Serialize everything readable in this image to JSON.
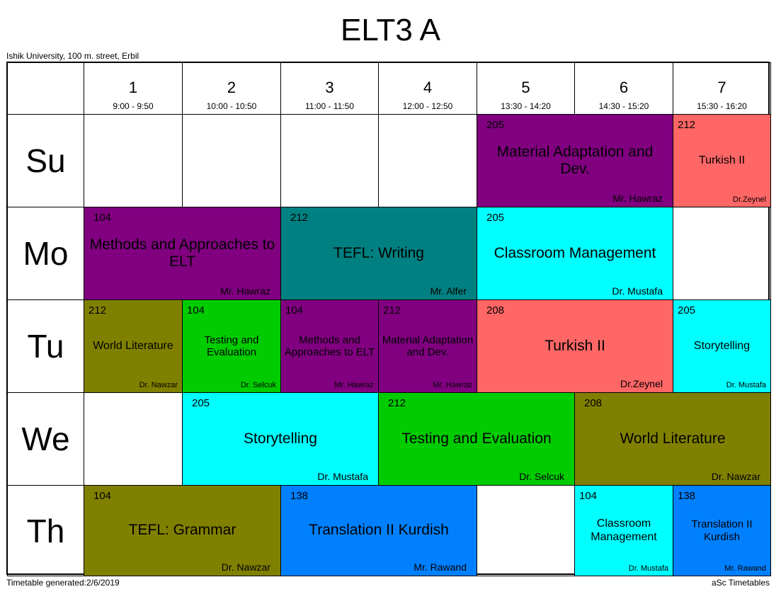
{
  "title": "ELT3 A",
  "address": "Ishik University, 100 m. street, Erbil",
  "footer_left": "Timetable generated:2/6/2019",
  "footer_right": "aSc Timetables",
  "colors": {
    "purple": "#800080",
    "teal": "#008080",
    "cyan": "#00FFFF",
    "salmon": "#FF6666",
    "olive": "#808000",
    "green": "#00CC00",
    "blue": "#0080FF"
  },
  "periods": [
    {
      "n": "1",
      "time": "9:00 - 9:50"
    },
    {
      "n": "2",
      "time": "10:00 - 10:50"
    },
    {
      "n": "3",
      "time": "11:00 - 11:50"
    },
    {
      "n": "4",
      "time": "12:00 - 12:50"
    },
    {
      "n": "5",
      "time": "13:30 - 14:20"
    },
    {
      "n": "6",
      "time": "14:30 - 15:20"
    },
    {
      "n": "7",
      "time": "15:30 - 16:20"
    }
  ],
  "days": [
    "Su",
    "Mo",
    "Tu",
    "We",
    "Th"
  ],
  "lessons": [
    {
      "day": 0,
      "start": 5,
      "span": 2,
      "room": "205",
      "subject": "Material Adaptation and Dev.",
      "teacher": "Mr. Hawraz",
      "color": "purple"
    },
    {
      "day": 0,
      "start": 7,
      "span": 1,
      "room": "212",
      "subject": "Turkish II",
      "teacher": "Dr.Zeynel",
      "color": "salmon"
    },
    {
      "day": 1,
      "start": 1,
      "span": 2,
      "room": "104",
      "subject": "Methods and Approaches to ELT",
      "teacher": "Mr. Hawraz",
      "color": "purple"
    },
    {
      "day": 1,
      "start": 3,
      "span": 2,
      "room": "212",
      "subject": "TEFL: Writing",
      "teacher": "Mr. Alfer",
      "color": "teal"
    },
    {
      "day": 1,
      "start": 5,
      "span": 2,
      "room": "205",
      "subject": "Classroom Management",
      "teacher": "Dr. Mustafa",
      "color": "cyan"
    },
    {
      "day": 2,
      "start": 1,
      "span": 1,
      "room": "212",
      "subject": "World Literature",
      "teacher": "Dr. Nawzar",
      "color": "olive"
    },
    {
      "day": 2,
      "start": 2,
      "span": 1,
      "room": "104",
      "subject": "Testing and Evaluation",
      "teacher": "Dr. Selcuk",
      "color": "green"
    },
    {
      "day": 2,
      "start": 3,
      "span": 1,
      "room": "104",
      "subject": "Methods and Approaches to ELT",
      "teacher": "Mr. Hawraz",
      "color": "purple"
    },
    {
      "day": 2,
      "start": 4,
      "span": 1,
      "room": "212",
      "subject": "Material Adaptation and Dev.",
      "teacher": "Mr. Hawraz",
      "color": "purple"
    },
    {
      "day": 2,
      "start": 5,
      "span": 2,
      "room": "208",
      "subject": "Turkish II",
      "teacher": "Dr.Zeynel",
      "color": "salmon"
    },
    {
      "day": 2,
      "start": 7,
      "span": 1,
      "room": "205",
      "subject": "Storytelling",
      "teacher": "Dr. Mustafa",
      "color": "cyan"
    },
    {
      "day": 3,
      "start": 2,
      "span": 2,
      "room": "205",
      "subject": "Storytelling",
      "teacher": "Dr. Mustafa",
      "color": "cyan"
    },
    {
      "day": 3,
      "start": 4,
      "span": 2,
      "room": "212",
      "subject": "Testing and Evaluation",
      "teacher": "Dr. Selcuk",
      "color": "green"
    },
    {
      "day": 3,
      "start": 6,
      "span": 2,
      "room": "208",
      "subject": "World Literature",
      "teacher": "Dr. Nawzar",
      "color": "olive"
    },
    {
      "day": 4,
      "start": 1,
      "span": 2,
      "room": "104",
      "subject": "TEFL: Grammar",
      "teacher": "Dr. Nawzar",
      "color": "olive"
    },
    {
      "day": 4,
      "start": 3,
      "span": 2,
      "room": "138",
      "subject": "Translation II Kurdish",
      "teacher": "Mr. Rawand",
      "color": "blue"
    },
    {
      "day": 4,
      "start": 6,
      "span": 1,
      "room": "104",
      "subject": "Classroom Management",
      "teacher": "Dr. Mustafa",
      "color": "cyan"
    },
    {
      "day": 4,
      "start": 7,
      "span": 1,
      "room": "138",
      "subject": "Translation II Kurdish",
      "teacher": "Mr. Rawand",
      "color": "blue"
    }
  ]
}
